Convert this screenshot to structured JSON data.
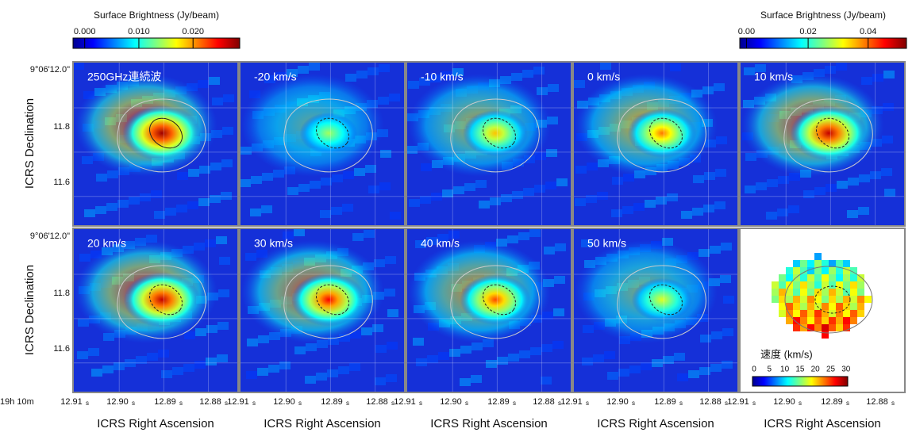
{
  "colorbars": [
    {
      "title": "Surface Brightness (Jy/beam)",
      "ticks": [
        "0.000",
        "0.010",
        "0.020"
      ]
    },
    {
      "title": "Surface Brightness (Jy/beam)",
      "ticks": [
        "0.00",
        "0.02",
        "0.04"
      ]
    }
  ],
  "panels": [
    "250GHz連続波",
    "-20 km/s",
    "-10 km/s",
    "0 km/s",
    "10 km/s",
    "20 km/s",
    "30 km/s",
    "40 km/s",
    "50 km/s"
  ],
  "velocity_map": {
    "title": "速度 (km/s)",
    "ticks": [
      "0",
      "5",
      "10",
      "15",
      "20",
      "25",
      "30"
    ]
  },
  "y_axis": {
    "label": "ICRS Declination",
    "ticks": [
      "9°06'12.0\"",
      "11.8",
      "11.6"
    ]
  },
  "x_axis": {
    "label": "ICRS Right Ascension",
    "prefix": "19h 10m",
    "ticks": [
      "12.91",
      "12.90",
      "12.89",
      "12.88"
    ],
    "unit": "s"
  }
}
